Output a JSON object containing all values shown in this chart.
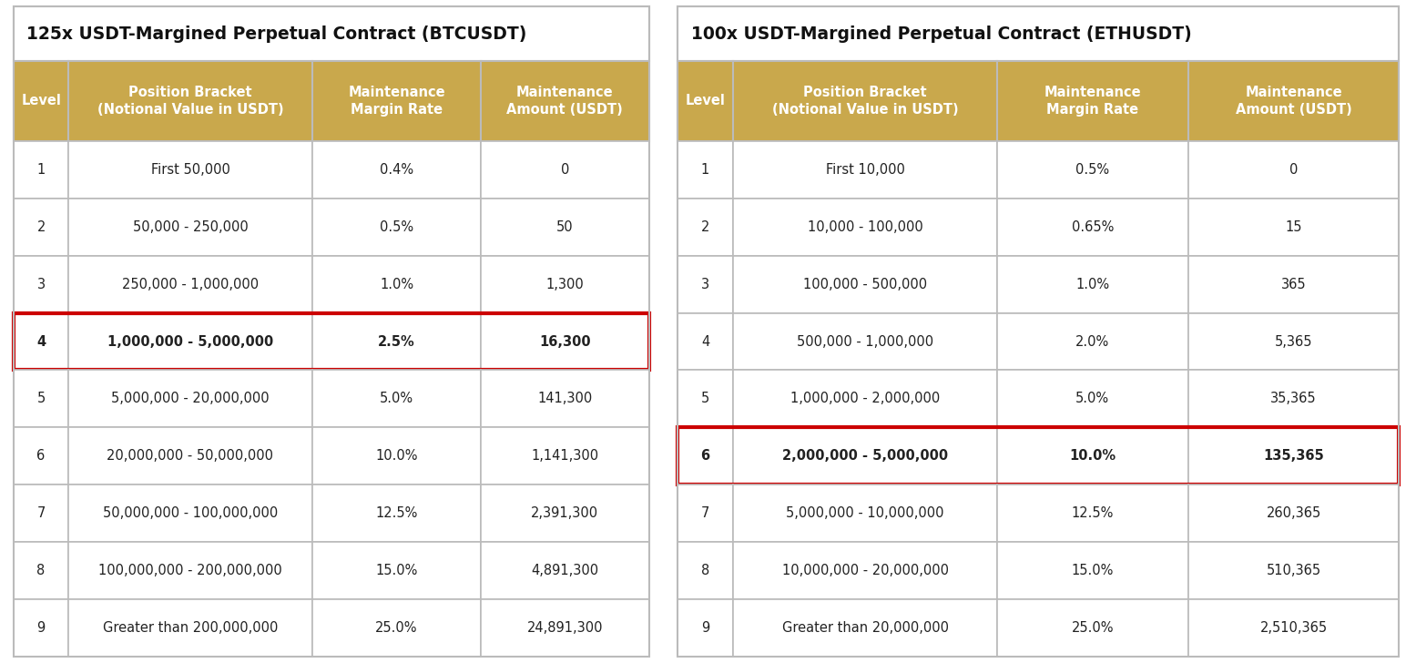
{
  "btc_title": "125x USDT-Margined Perpetual Contract (BTCUSDT)",
  "eth_title": "100x USDT-Margined Perpetual Contract (ETHUSDT)",
  "btc_headers": [
    "Level",
    "Position Bracket\n(Notional Value in USDT)",
    "Maintenance\nMargin Rate",
    "Maintenance\nAmount (USDT)"
  ],
  "eth_headers": [
    "Level",
    "Position Bracket\n(Notional Value in USDT)",
    "Maintenance\nMargin Rate",
    "Maintenance\nAmount (USDT)"
  ],
  "btc_rows": [
    [
      "1",
      "First 50,000",
      "0.4%",
      "0"
    ],
    [
      "2",
      "50,000 - 250,000",
      "0.5%",
      "50"
    ],
    [
      "3",
      "250,000 - 1,000,000",
      "1.0%",
      "1,300"
    ],
    [
      "4",
      "1,000,000 - 5,000,000",
      "2.5%",
      "16,300"
    ],
    [
      "5",
      "5,000,000 - 20,000,000",
      "5.0%",
      "141,300"
    ],
    [
      "6",
      "20,000,000 - 50,000,000",
      "10.0%",
      "1,141,300"
    ],
    [
      "7",
      "50,000,000 - 100,000,000",
      "12.5%",
      "2,391,300"
    ],
    [
      "8",
      "100,000,000 - 200,000,000",
      "15.0%",
      "4,891,300"
    ],
    [
      "9",
      "Greater than 200,000,000",
      "25.0%",
      "24,891,300"
    ]
  ],
  "eth_rows": [
    [
      "1",
      "First 10,000",
      "0.5%",
      "0"
    ],
    [
      "2",
      "10,000 - 100,000",
      "0.65%",
      "15"
    ],
    [
      "3",
      "100,000 - 500,000",
      "1.0%",
      "365"
    ],
    [
      "4",
      "500,000 - 1,000,000",
      "2.0%",
      "5,365"
    ],
    [
      "5",
      "1,000,000 - 2,000,000",
      "5.0%",
      "35,365"
    ],
    [
      "6",
      "2,000,000 - 5,000,000",
      "10.0%",
      "135,365"
    ],
    [
      "7",
      "5,000,000 - 10,000,000",
      "12.5%",
      "260,365"
    ],
    [
      "8",
      "10,000,000 - 20,000,000",
      "15.0%",
      "510,365"
    ],
    [
      "9",
      "Greater than 20,000,000",
      "25.0%",
      "2,510,365"
    ]
  ],
  "btc_highlight_row": 3,
  "eth_highlight_row": 5,
  "header_bg": "#C9A84C",
  "border_color": "#BBBBBB",
  "text_color": "#222222",
  "highlight_color": "#CC0000",
  "fig_bg": "#FFFFFF",
  "title_fontsize": 13.5,
  "header_fontsize": 10.5,
  "cell_fontsize": 10.5
}
